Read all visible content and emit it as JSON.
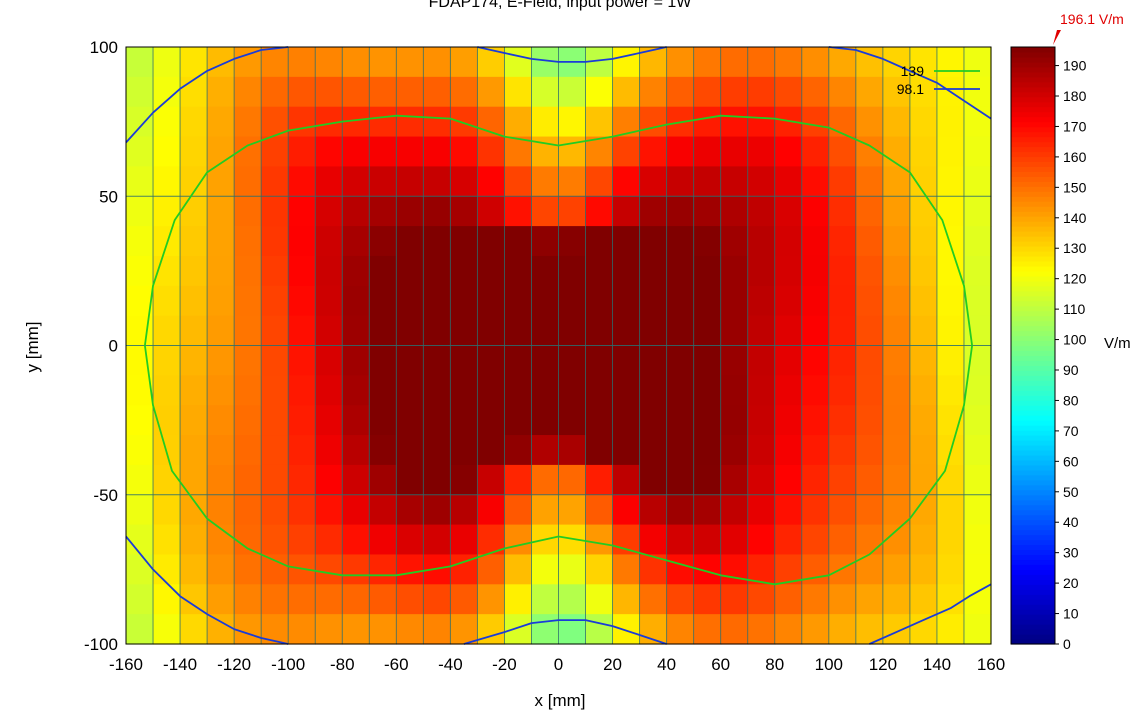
{
  "chart_data": {
    "type": "heatmap",
    "title": "FDAP174, E-Field, input power = 1W",
    "xlabel": "x [mm]",
    "ylabel": "y [mm]",
    "xlim": [
      -160,
      160
    ],
    "ylim": [
      -100,
      100
    ],
    "grid": true,
    "x_ticks": [
      "-160",
      "-140",
      "-120",
      "-100",
      "-80",
      "-60",
      "-40",
      "-20",
      "0",
      "20",
      "40",
      "60",
      "80",
      "100",
      "120",
      "140",
      "160"
    ],
    "y_ticks": [
      "100",
      "50",
      "0",
      "-50",
      "-100"
    ],
    "x_tick_values": [
      -160,
      -140,
      -120,
      -100,
      -80,
      -60,
      -40,
      -20,
      0,
      20,
      40,
      60,
      80,
      100,
      120,
      140,
      160
    ],
    "y_tick_values": [
      100,
      50,
      0,
      -50,
      -100
    ],
    "grid_x_step": 10,
    "grid_y_step": 10,
    "cell_size_mm": [
      10,
      10
    ],
    "nx": 32,
    "ny": 20,
    "value_range": [
      0,
      196.1
    ],
    "max_value": 196.1,
    "max_label": "196.1 V/m",
    "max_label_color": "#e00000",
    "colorbar": {
      "unit": "V/m",
      "ticks": [
        "190",
        "180",
        "170",
        "160",
        "150",
        "140",
        "130",
        "120",
        "110",
        "100",
        "90",
        "80",
        "70",
        "60",
        "50",
        "40",
        "30",
        "20",
        "10",
        "0"
      ],
      "tick_values": [
        190,
        180,
        170,
        160,
        150,
        140,
        130,
        120,
        110,
        100,
        90,
        80,
        70,
        60,
        50,
        40,
        30,
        20,
        10,
        0
      ],
      "colormap": "jet"
    },
    "legend": {
      "placement": "top-right",
      "entries": [
        {
          "label": "139",
          "color": "#22cc22"
        },
        {
          "label": "98.1",
          "color": "#1a3cd8"
        }
      ]
    },
    "contours": [
      {
        "level": 139,
        "color": "#22cc22",
        "closed": true,
        "points": [
          [
            -20,
            70
          ],
          [
            -40,
            76
          ],
          [
            -60,
            77
          ],
          [
            -80,
            75
          ],
          [
            -100,
            72
          ],
          [
            -115,
            67
          ],
          [
            -130,
            58
          ],
          [
            -142,
            42
          ],
          [
            -150,
            20
          ],
          [
            -153,
            0
          ],
          [
            -150,
            -20
          ],
          [
            -143,
            -42
          ],
          [
            -130,
            -58
          ],
          [
            -115,
            -68
          ],
          [
            -100,
            -74
          ],
          [
            -80,
            -77
          ],
          [
            -60,
            -77
          ],
          [
            -40,
            -74
          ],
          [
            -20,
            -68
          ],
          [
            0,
            -64
          ],
          [
            20,
            -67
          ],
          [
            40,
            -72
          ],
          [
            60,
            -77
          ],
          [
            80,
            -80
          ],
          [
            100,
            -77
          ],
          [
            115,
            -70
          ],
          [
            130,
            -58
          ],
          [
            143,
            -42
          ],
          [
            150,
            -20
          ],
          [
            153,
            0
          ],
          [
            150,
            20
          ],
          [
            142,
            42
          ],
          [
            130,
            58
          ],
          [
            115,
            67
          ],
          [
            100,
            73
          ],
          [
            80,
            76
          ],
          [
            60,
            77
          ],
          [
            40,
            74
          ],
          [
            20,
            70
          ],
          [
            0,
            67
          ]
        ]
      },
      {
        "level": 98.1,
        "color": "#1a3cd8",
        "closed": false,
        "points": [
          [
            -160,
            68
          ],
          [
            -150,
            78
          ],
          [
            -140,
            86
          ],
          [
            -130,
            92
          ],
          [
            -120,
            96
          ],
          [
            -110,
            99
          ],
          [
            -100,
            100
          ]
        ]
      },
      {
        "level": 98.1,
        "color": "#1a3cd8",
        "closed": false,
        "points": [
          [
            -30,
            100
          ],
          [
            -20,
            98
          ],
          [
            -10,
            96
          ],
          [
            0,
            95
          ],
          [
            10,
            95
          ],
          [
            20,
            96
          ],
          [
            30,
            98
          ],
          [
            40,
            100
          ]
        ]
      },
      {
        "level": 98.1,
        "color": "#1a3cd8",
        "closed": false,
        "points": [
          [
            100,
            100
          ],
          [
            110,
            99
          ],
          [
            120,
            96
          ],
          [
            130,
            92
          ],
          [
            140,
            88
          ],
          [
            150,
            82
          ],
          [
            160,
            76
          ]
        ]
      },
      {
        "level": 98.1,
        "color": "#1a3cd8",
        "closed": false,
        "points": [
          [
            -160,
            -64
          ],
          [
            -150,
            -75
          ],
          [
            -140,
            -84
          ],
          [
            -130,
            -90
          ],
          [
            -120,
            -95
          ],
          [
            -110,
            -98
          ],
          [
            -100,
            -100
          ]
        ]
      },
      {
        "level": 98.1,
        "color": "#1a3cd8",
        "closed": false,
        "points": [
          [
            -35,
            -100
          ],
          [
            -20,
            -96
          ],
          [
            -10,
            -93
          ],
          [
            0,
            -92
          ],
          [
            10,
            -92
          ],
          [
            20,
            -94
          ],
          [
            30,
            -97
          ],
          [
            40,
            -100
          ]
        ]
      },
      {
        "level": 98.1,
        "color": "#1a3cd8",
        "closed": false,
        "points": [
          [
            115,
            -100
          ],
          [
            125,
            -96
          ],
          [
            135,
            -92
          ],
          [
            145,
            -88
          ],
          [
            152,
            -84
          ],
          [
            160,
            -80
          ]
        ]
      }
    ]
  }
}
